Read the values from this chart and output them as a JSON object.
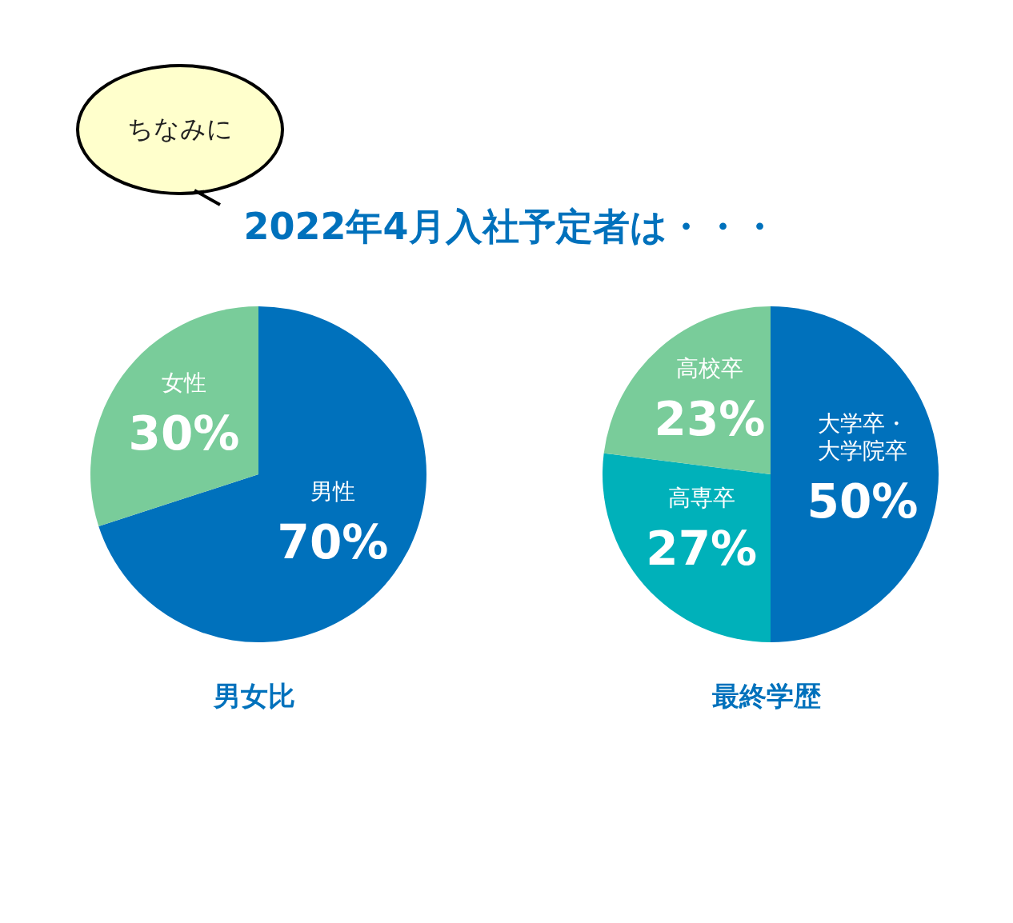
{
  "chart_data": [
    {
      "type": "pie",
      "title": "男女比",
      "annotations": [
        "ちなみに",
        "2022年4月入社予定者は・・・"
      ],
      "categories": [
        "男性",
        "女性"
      ],
      "values": [
        70,
        30
      ],
      "value_labels": [
        "70%",
        "30%"
      ],
      "colors": [
        "#0071bc",
        "#79cc9a"
      ]
    },
    {
      "type": "pie",
      "title": "最終学歴",
      "categories": [
        "大学卒・大学院卒",
        "高専卒",
        "高校卒"
      ],
      "values": [
        50,
        27,
        23
      ],
      "value_labels": [
        "50%",
        "27%",
        "23%"
      ],
      "colors": [
        "#0071bc",
        "#00b1ba",
        "#79cc9a"
      ]
    }
  ]
}
